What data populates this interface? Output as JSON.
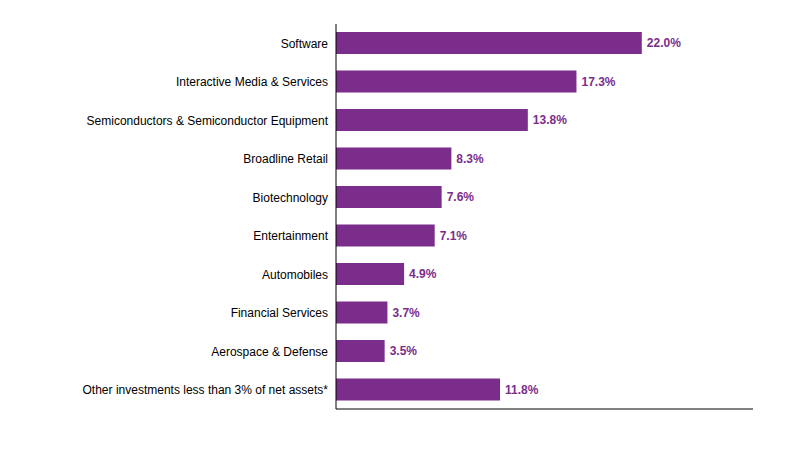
{
  "chart_data": {
    "type": "bar",
    "orientation": "horizontal",
    "categories": [
      "Other investments less than 3% of net assets*",
      "Aerospace & Defense",
      "Financial Services",
      "Automobiles",
      "Entertainment",
      "Biotechnology",
      "Broadline Retail",
      "Semiconductors & Semiconductor Equipment",
      "Interactive Media & Services",
      "Software"
    ],
    "values": [
      11.8,
      3.5,
      3.7,
      4.9,
      7.1,
      7.6,
      8.3,
      13.8,
      17.3,
      22.0
    ],
    "value_labels": [
      "11.8%",
      "3.5%",
      "3.7%",
      "4.9%",
      "7.1%",
      "7.6%",
      "8.3%",
      "13.8%",
      "17.3%",
      "22.0%"
    ],
    "data_labels": true,
    "color": "#7B2D8B",
    "xlim": [
      0,
      30
    ],
    "tick_labels": "y",
    "grid": false
  }
}
